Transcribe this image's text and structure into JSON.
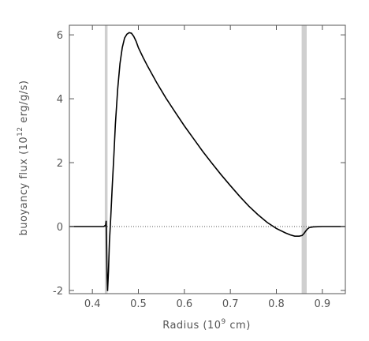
{
  "chart_data": {
    "type": "line",
    "xlabel": "Radius (10",
    "xlabel_sup": "9",
    "xlabel_end": " cm)",
    "ylabel": "buoyancy flux (10",
    "ylabel_sup": "12",
    "ylabel_end": " erg/g/s)",
    "xlim": [
      0.35,
      0.95
    ],
    "ylim": [
      -2.1,
      6.3
    ],
    "x_ticks": [
      0.4,
      0.5,
      0.6,
      0.7,
      0.8,
      0.9
    ],
    "x_tick_labels": [
      "0.4",
      "0.5",
      "0.6",
      "0.7",
      "0.8",
      "0.9"
    ],
    "y_ticks": [
      -2,
      0,
      2,
      4,
      6
    ],
    "y_tick_labels": [
      "-2",
      "0",
      "2",
      "4",
      "6"
    ],
    "grid": false,
    "reference_line": {
      "y": 0,
      "style": "dotted"
    },
    "shaded_bands": [
      {
        "x_start": 0.427,
        "x_end": 0.433
      },
      {
        "x_start": 0.855,
        "x_end": 0.866
      }
    ],
    "series": [
      {
        "color": "#000000",
        "x": [
          0.35,
          0.4,
          0.425,
          0.429,
          0.43,
          0.431,
          0.432,
          0.433,
          0.435,
          0.437,
          0.44,
          0.443,
          0.447,
          0.45,
          0.455,
          0.46,
          0.465,
          0.47,
          0.475,
          0.48,
          0.485,
          0.49,
          0.495,
          0.5,
          0.51,
          0.52,
          0.54,
          0.56,
          0.58,
          0.6,
          0.62,
          0.64,
          0.66,
          0.68,
          0.7,
          0.72,
          0.74,
          0.76,
          0.78,
          0.8,
          0.82,
          0.83,
          0.84,
          0.85,
          0.856,
          0.86,
          0.864,
          0.868,
          0.872,
          0.88,
          0.9,
          0.95
        ],
        "y": [
          0.0,
          0.0,
          0.0,
          0.05,
          0.18,
          -0.6,
          -1.6,
          -2.02,
          -1.4,
          -0.5,
          0.3,
          1.2,
          2.3,
          3.2,
          4.3,
          5.1,
          5.6,
          5.9,
          6.02,
          6.07,
          6.05,
          5.95,
          5.8,
          5.6,
          5.3,
          5.02,
          4.5,
          4.02,
          3.58,
          3.15,
          2.75,
          2.35,
          1.98,
          1.62,
          1.28,
          0.95,
          0.64,
          0.37,
          0.13,
          -0.06,
          -0.2,
          -0.26,
          -0.3,
          -0.3,
          -0.28,
          -0.22,
          -0.14,
          -0.07,
          -0.03,
          -0.01,
          0.0,
          0.0
        ]
      }
    ]
  }
}
